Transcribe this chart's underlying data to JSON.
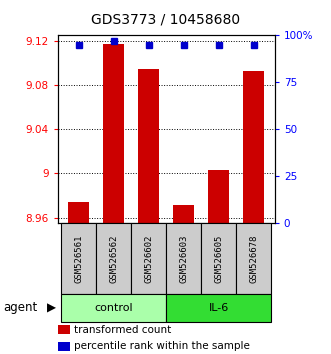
{
  "title": "GDS3773 / 10458680",
  "samples": [
    "GSM526561",
    "GSM526562",
    "GSM526602",
    "GSM526603",
    "GSM526605",
    "GSM526678"
  ],
  "red_values": [
    8.974,
    9.117,
    9.095,
    8.971,
    9.003,
    9.093
  ],
  "blue_values": [
    95,
    97,
    95,
    95,
    95,
    95
  ],
  "ylim_left": [
    8.955,
    9.125
  ],
  "ylim_right": [
    0,
    100
  ],
  "yticks_left": [
    8.96,
    9.0,
    9.04,
    9.08,
    9.12
  ],
  "yticks_right": [
    0,
    25,
    50,
    75,
    100
  ],
  "ytick_labels_left": [
    "8.96",
    "9",
    "9.04",
    "9.08",
    "9.12"
  ],
  "ytick_labels_right": [
    "0",
    "25",
    "50",
    "75",
    "100%"
  ],
  "groups": [
    {
      "label": "control",
      "indices": [
        0,
        1,
        2
      ],
      "color": "#aaffaa"
    },
    {
      "label": "IL-6",
      "indices": [
        3,
        4,
        5
      ],
      "color": "#33dd33"
    }
  ],
  "bar_color": "#cc0000",
  "dot_color": "#0000cc",
  "bar_width": 0.6,
  "base_value": 8.955,
  "legend_red_label": "transformed count",
  "legend_blue_label": "percentile rank within the sample",
  "agent_label": "agent",
  "background_color": "#ffffff",
  "sample_box_color": "#cccccc",
  "title_fontsize": 10,
  "tick_fontsize": 7.5,
  "sample_fontsize": 6.5,
  "group_fontsize": 8,
  "legend_fontsize": 7.5,
  "agent_fontsize": 8.5
}
